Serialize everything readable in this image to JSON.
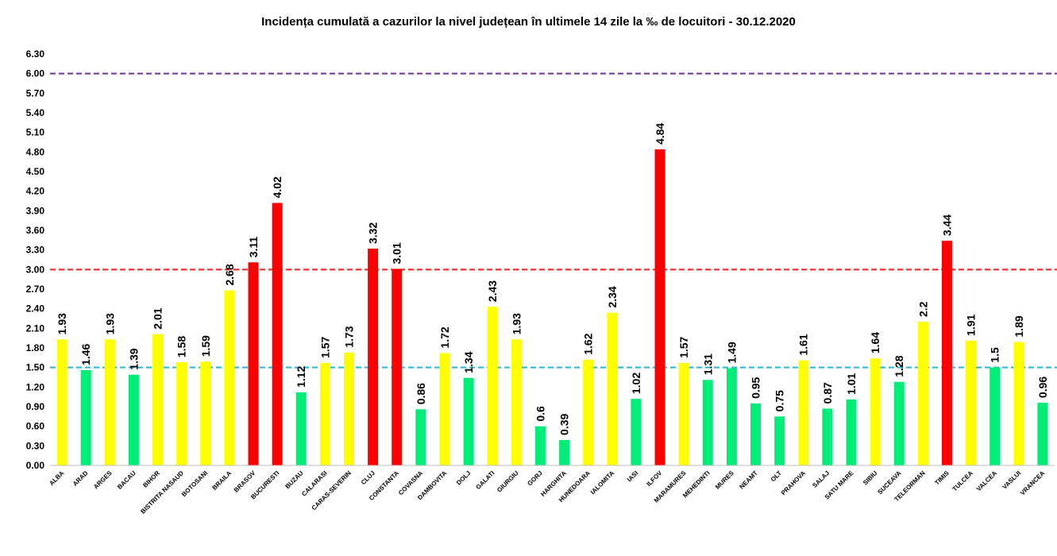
{
  "chart_data": {
    "type": "bar",
    "title": "Incidența cumulată a cazurilor la nivel județean în ultimele 14 zile la ‰ de locuitori - 30.12.2020",
    "xlabel": "",
    "ylabel": "",
    "ylim": [
      0,
      6.3
    ],
    "ytick_step": 0.3,
    "ytick_labels": [
      "0.00",
      "0.30",
      "0.60",
      "0.90",
      "1.20",
      "1.50",
      "1.80",
      "2.10",
      "2.40",
      "2.70",
      "3.00",
      "3.30",
      "3.60",
      "3.90",
      "4.20",
      "4.50",
      "4.80",
      "5.10",
      "5.40",
      "5.70",
      "6.00",
      "6.30"
    ],
    "grid": false,
    "categories": [
      "ALBA",
      "ARAD",
      "ARGES",
      "BACAU",
      "BIHOR",
      "BISTRITA NASAUD",
      "BOTOSANI",
      "BRAILA",
      "BRASOV",
      "BUCURESTI",
      "BUZAU",
      "CALARASI",
      "CARAS-SEVERIN",
      "CLUJ",
      "CONSTANTA",
      "COVASNA",
      "DAMBOVITA",
      "DOLJ",
      "GALATI",
      "GIURGIU",
      "GORJ",
      "HARGHITA",
      "HUNEDOARA",
      "IALOMITA",
      "IASI",
      "ILFOV",
      "MARAMURES",
      "MEHEDINTI",
      "MURES",
      "NEAMT",
      "OLT",
      "PRAHOVA",
      "SALAJ",
      "SATU MARE",
      "SIBIU",
      "SUCEAVA",
      "TELEORMAN",
      "TIMIS",
      "TULCEA",
      "VALCEA",
      "VASLUI",
      "VRANCEA"
    ],
    "values": [
      1.93,
      1.46,
      1.93,
      1.39,
      2.01,
      1.58,
      1.59,
      2.68,
      3.11,
      4.02,
      1.12,
      1.57,
      1.73,
      3.32,
      3.01,
      0.86,
      1.72,
      1.34,
      2.43,
      1.93,
      0.6,
      0.39,
      1.62,
      2.34,
      1.02,
      4.84,
      1.57,
      1.31,
      1.49,
      0.95,
      0.75,
      1.61,
      0.87,
      1.01,
      1.64,
      1.28,
      2.2,
      3.44,
      1.91,
      1.5,
      1.89,
      0.96
    ],
    "value_labels": [
      "1.93",
      "1.46",
      "1.93",
      "1.39",
      "2.01",
      "1.58",
      "1.59",
      "2.68",
      "3.11",
      "4.02",
      "1.12",
      "1.57",
      "1.73",
      "3.32",
      "3.01",
      "0.86",
      "1.72",
      "1.34",
      "2.43",
      "1.93",
      "0.6",
      "0.39",
      "1.62",
      "2.34",
      "1.02",
      "4.84",
      "1.57",
      "1.31",
      "1.49",
      "0.95",
      "0.75",
      "1.61",
      "0.87",
      "1.01",
      "1.64",
      "1.28",
      "2.2",
      "3.44",
      "1.91",
      "1.5",
      "1.89",
      "0.96"
    ],
    "colors": {
      "green": "#00ee77",
      "yellow": "#ffff00",
      "red": "#ff0000",
      "line_low": "#22b8d6",
      "line_mid": "#ff1a1a",
      "line_high": "#7030a0"
    },
    "color_rule": {
      "green_below_or_equal": 1.5,
      "red_above": 3.0
    },
    "reference_lines": [
      {
        "value": 1.5,
        "color": "#22b8d6",
        "style": "dashed"
      },
      {
        "value": 3.0,
        "color": "#ff1a1a",
        "style": "dashed"
      },
      {
        "value": 6.0,
        "color": "#7030a0",
        "style": "dashed"
      }
    ]
  }
}
